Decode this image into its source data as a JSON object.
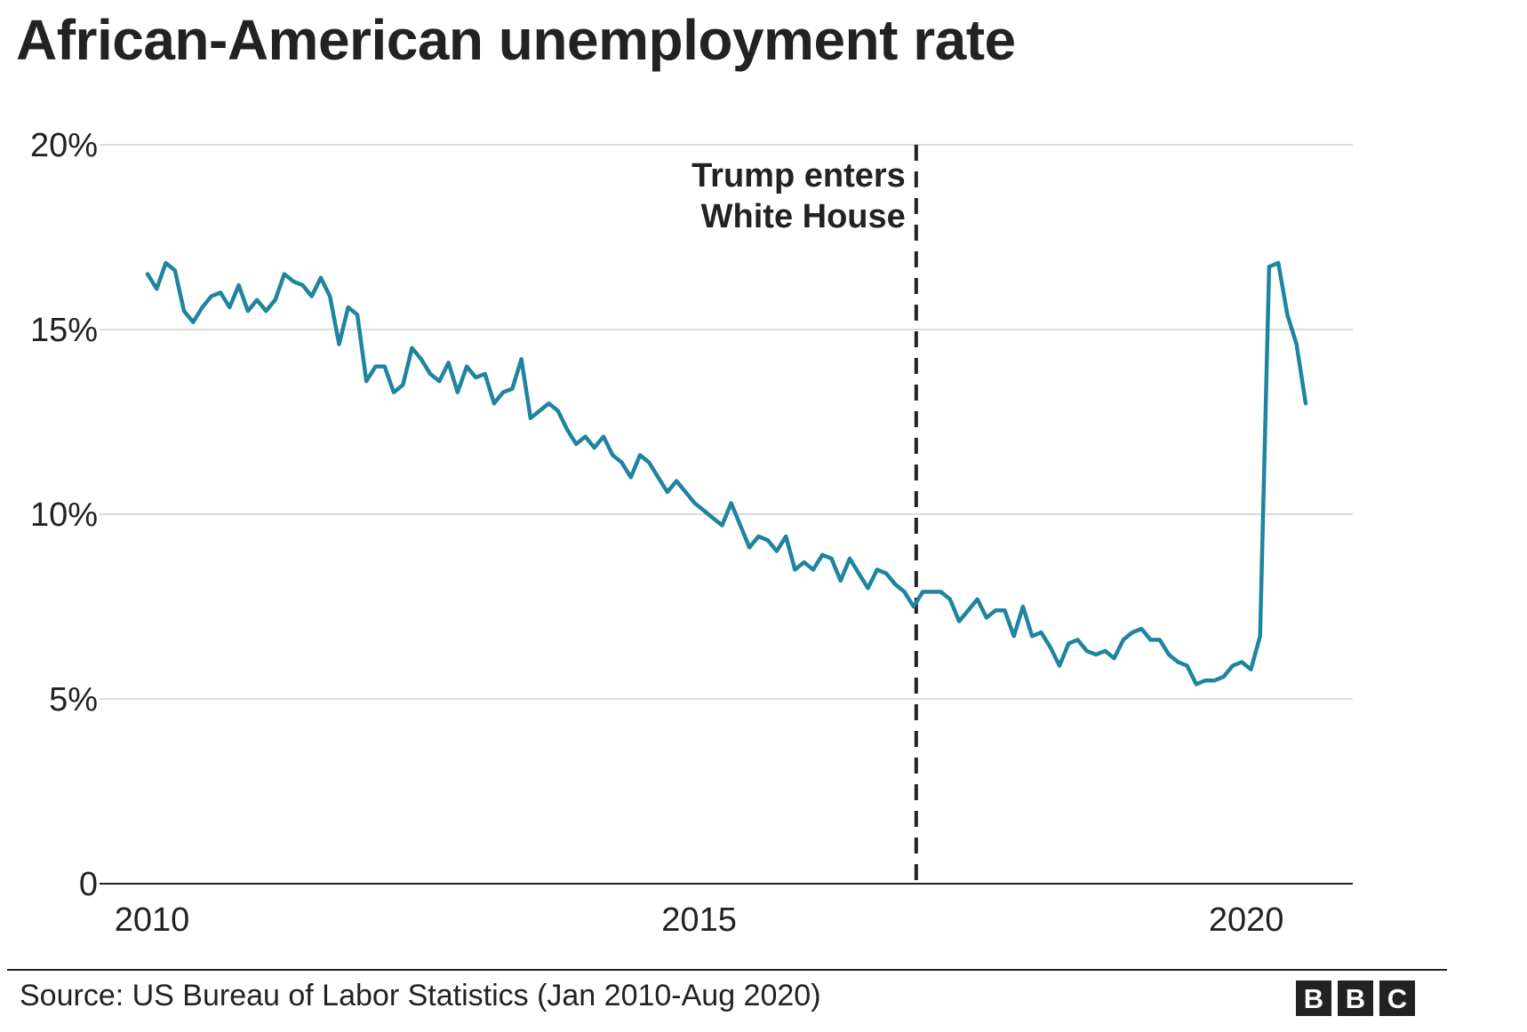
{
  "chart_data": {
    "type": "line",
    "title": "African-American unemployment rate",
    "xlabel": "",
    "ylabel": "",
    "x_range": [
      "2010-01",
      "2020-12"
    ],
    "ylim": [
      0,
      20
    ],
    "y_ticks": [
      {
        "value": 0,
        "label": "0"
      },
      {
        "value": 5,
        "label": "5%"
      },
      {
        "value": 10,
        "label": "10%"
      },
      {
        "value": 15,
        "label": "15%"
      },
      {
        "value": 20,
        "label": "20%"
      }
    ],
    "x_ticks": [
      {
        "value": "2010-01",
        "label": "2010"
      },
      {
        "value": "2015-01",
        "label": "2015"
      },
      {
        "value": "2020-01",
        "label": "2020"
      }
    ],
    "grid": true,
    "series": [
      {
        "color": "#1f84a0",
        "x": [
          "2010-01",
          "2010-02",
          "2010-03",
          "2010-04",
          "2010-05",
          "2010-06",
          "2010-07",
          "2010-08",
          "2010-09",
          "2010-10",
          "2010-11",
          "2010-12",
          "2011-01",
          "2011-02",
          "2011-03",
          "2011-04",
          "2011-05",
          "2011-06",
          "2011-07",
          "2011-08",
          "2011-09",
          "2011-10",
          "2011-11",
          "2011-12",
          "2012-01",
          "2012-02",
          "2012-03",
          "2012-04",
          "2012-05",
          "2012-06",
          "2012-07",
          "2012-08",
          "2012-09",
          "2012-10",
          "2012-11",
          "2012-12",
          "2013-01",
          "2013-02",
          "2013-03",
          "2013-04",
          "2013-05",
          "2013-06",
          "2013-07",
          "2013-08",
          "2013-09",
          "2013-10",
          "2013-11",
          "2013-12",
          "2014-01",
          "2014-02",
          "2014-03",
          "2014-04",
          "2014-05",
          "2014-06",
          "2014-07",
          "2014-08",
          "2014-09",
          "2014-10",
          "2014-11",
          "2014-12",
          "2015-01",
          "2015-02",
          "2015-03",
          "2015-04",
          "2015-05",
          "2015-06",
          "2015-07",
          "2015-08",
          "2015-09",
          "2015-10",
          "2015-11",
          "2015-12",
          "2016-01",
          "2016-02",
          "2016-03",
          "2016-04",
          "2016-05",
          "2016-06",
          "2016-07",
          "2016-08",
          "2016-09",
          "2016-10",
          "2016-11",
          "2016-12",
          "2017-01",
          "2017-02",
          "2017-03",
          "2017-04",
          "2017-05",
          "2017-06",
          "2017-07",
          "2017-08",
          "2017-09",
          "2017-10",
          "2017-11",
          "2017-12",
          "2018-01",
          "2018-02",
          "2018-03",
          "2018-04",
          "2018-05",
          "2018-06",
          "2018-07",
          "2018-08",
          "2018-09",
          "2018-10",
          "2018-11",
          "2018-12",
          "2019-01",
          "2019-02",
          "2019-03",
          "2019-04",
          "2019-05",
          "2019-06",
          "2019-07",
          "2019-08",
          "2019-09",
          "2019-10",
          "2019-11",
          "2019-12",
          "2020-01",
          "2020-02",
          "2020-03",
          "2020-04",
          "2020-05",
          "2020-06",
          "2020-07",
          "2020-08"
        ],
        "y": [
          16.5,
          16.1,
          16.8,
          16.6,
          15.5,
          15.2,
          15.6,
          15.9,
          16.0,
          15.6,
          16.2,
          15.5,
          15.8,
          15.5,
          15.8,
          16.5,
          16.3,
          16.2,
          15.9,
          16.4,
          15.9,
          14.6,
          15.6,
          15.4,
          13.6,
          14.0,
          14.0,
          13.3,
          13.5,
          14.5,
          14.2,
          13.8,
          13.6,
          14.1,
          13.3,
          14.0,
          13.7,
          13.8,
          13.0,
          13.3,
          13.4,
          14.2,
          12.6,
          12.8,
          13.0,
          12.8,
          12.3,
          11.9,
          12.1,
          11.8,
          12.1,
          11.6,
          11.4,
          11.0,
          11.6,
          11.4,
          11.0,
          10.6,
          10.9,
          10.6,
          10.3,
          10.1,
          9.9,
          9.7,
          10.3,
          9.7,
          9.1,
          9.4,
          9.3,
          9.0,
          9.4,
          8.5,
          8.7,
          8.5,
          8.9,
          8.8,
          8.2,
          8.8,
          8.4,
          8.0,
          8.5,
          8.4,
          8.1,
          7.9,
          7.5,
          7.9,
          7.9,
          7.9,
          7.7,
          7.1,
          7.4,
          7.7,
          7.2,
          7.4,
          7.4,
          6.7,
          7.5,
          6.7,
          6.8,
          6.4,
          5.9,
          6.5,
          6.6,
          6.3,
          6.2,
          6.3,
          6.1,
          6.6,
          6.8,
          6.9,
          6.6,
          6.6,
          6.2,
          6.0,
          5.9,
          5.4,
          5.5,
          5.5,
          5.6,
          5.9,
          6.0,
          5.8,
          6.7,
          16.7,
          16.8,
          15.4,
          14.6,
          13.0
        ]
      }
    ],
    "annotations": [
      {
        "x": "2017-01",
        "style": "dashed",
        "label_lines": [
          "Trump enters",
          "White House"
        ]
      }
    ],
    "source": "Source: US Bureau of Labor Statistics (Jan 2010-Aug 2020)",
    "logo": [
      "B",
      "B",
      "C"
    ]
  }
}
